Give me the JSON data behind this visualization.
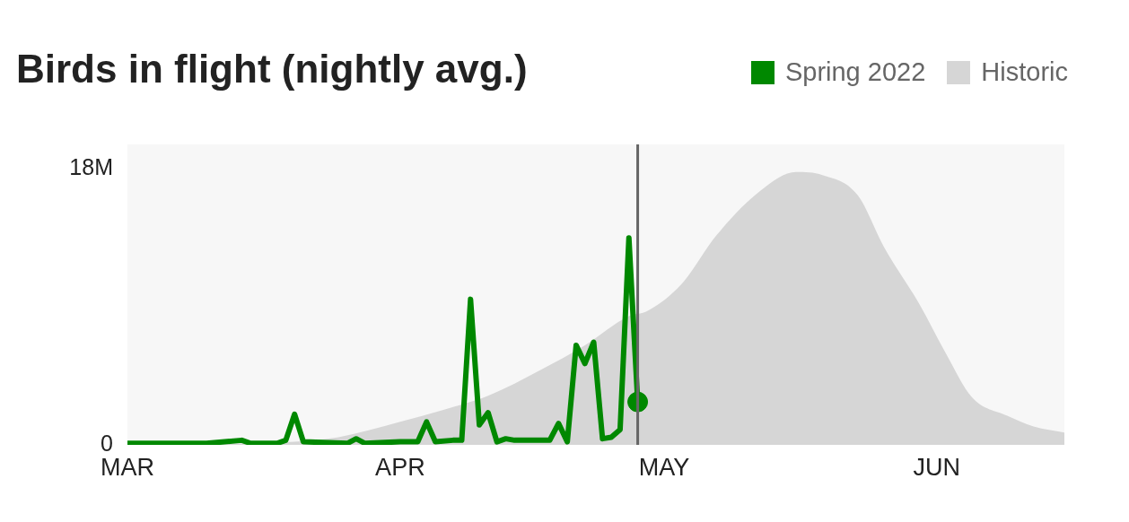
{
  "chart_data": {
    "type": "line",
    "title": "Birds in flight (nightly avg.)",
    "xlim": [
      "2022-03-01",
      "2022-06-15T12:00"
    ],
    "xticks": [
      {
        "value": "2022-03-01",
        "label": "MAR"
      },
      {
        "value": "2022-04-01",
        "label": "APR"
      },
      {
        "value": "2022-05-01",
        "label": "MAY"
      },
      {
        "value": "2022-06-01",
        "label": "JUN"
      }
    ],
    "ylim": [
      0,
      19.6
    ],
    "yticks": [
      {
        "value": 0,
        "label": "0"
      },
      {
        "value": 18,
        "label": "18M"
      }
    ],
    "grid": false,
    "legend": "top right",
    "marker": "none",
    "series": [
      {
        "name": "Historic",
        "type": "area",
        "color": "#d6d6d6",
        "x": [
          "2022-03-01",
          "2022-03-15",
          "2022-03-20",
          "2022-03-25",
          "2022-04-01",
          "2022-04-06",
          "2022-04-11",
          "2022-04-17",
          "2022-04-22",
          "2022-04-27",
          "2022-04-29",
          "2022-05-03",
          "2022-05-07",
          "2022-05-12",
          "2022-05-16",
          "2022-05-19",
          "2022-05-23",
          "2022-05-26",
          "2022-05-30",
          "2022-06-02",
          "2022-06-05",
          "2022-06-09",
          "2022-06-12",
          "2022-06-15T12:00"
        ],
        "values": [
          0,
          0.1,
          0.2,
          0.5,
          1.5,
          2.3,
          3.2,
          4.9,
          6.5,
          8.4,
          8.7,
          10.5,
          13.7,
          16.6,
          17.8,
          17.6,
          16.3,
          12.9,
          9.2,
          6.0,
          3.1,
          1.9,
          1.2,
          0.8
        ]
      },
      {
        "name": "Spring 2022",
        "color": "#008800",
        "x": [
          "2022-03-01",
          "2022-03-05",
          "2022-03-10",
          "2022-03-14",
          "2022-03-15",
          "2022-03-18",
          "2022-03-19",
          "2022-03-20",
          "2022-03-21",
          "2022-03-26",
          "2022-03-27",
          "2022-03-28",
          "2022-04-01",
          "2022-04-03",
          "2022-04-04",
          "2022-04-05",
          "2022-04-07",
          "2022-04-08",
          "2022-04-09",
          "2022-04-10",
          "2022-04-11",
          "2022-04-12",
          "2022-04-13",
          "2022-04-14",
          "2022-04-18",
          "2022-04-19",
          "2022-04-20",
          "2022-04-21",
          "2022-04-22",
          "2022-04-23",
          "2022-04-24",
          "2022-04-25",
          "2022-04-26",
          "2022-04-27",
          "2022-04-28"
        ],
        "values": [
          0.1,
          0.1,
          0.1,
          0.3,
          0.1,
          0.1,
          0.3,
          2.0,
          0.2,
          0.1,
          0.4,
          0.1,
          0.2,
          0.2,
          1.5,
          0.2,
          0.3,
          0.3,
          9.5,
          1.3,
          2.1,
          0.2,
          0.4,
          0.3,
          0.3,
          1.4,
          0.2,
          6.5,
          5.3,
          6.7,
          0.4,
          0.5,
          1.0,
          13.5,
          2.8
        ]
      },
      {
        "type": "scatter",
        "color": "#008800",
        "marker": "circle",
        "x": [
          "2022-04-28"
        ],
        "values": [
          2.8
        ]
      }
    ],
    "ref_lines": [
      {
        "axis": "x",
        "value": "2022-04-28",
        "color": "#666666"
      }
    ]
  }
}
